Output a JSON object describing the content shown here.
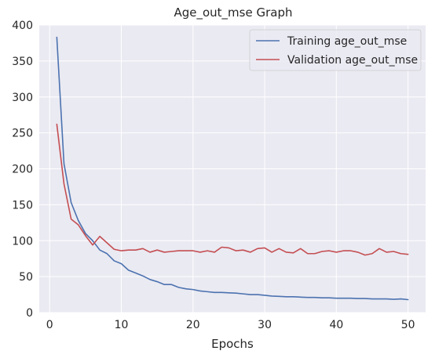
{
  "chart_data": {
    "type": "line",
    "title": "Age_out_mse Graph",
    "xlabel": "Epochs",
    "ylabel": "",
    "xlim": [
      -1.45,
      52.45
    ],
    "ylim": [
      0,
      400
    ],
    "xticks": [
      0,
      10,
      20,
      30,
      40,
      50
    ],
    "yticks": [
      0,
      50,
      100,
      150,
      200,
      250,
      300,
      350,
      400
    ],
    "grid": true,
    "legend_position": "top-right",
    "x": [
      1,
      2,
      3,
      4,
      5,
      6,
      7,
      8,
      9,
      10,
      11,
      12,
      13,
      14,
      15,
      16,
      17,
      18,
      19,
      20,
      21,
      22,
      23,
      24,
      25,
      26,
      27,
      28,
      29,
      30,
      31,
      32,
      33,
      34,
      35,
      36,
      37,
      38,
      39,
      40,
      41,
      42,
      43,
      44,
      45,
      46,
      47,
      48,
      49,
      50
    ],
    "series": [
      {
        "name": "Training age_out_mse",
        "color": "#4c72b0",
        "values": [
          383,
          207,
          153,
          128,
          110,
          100,
          87,
          82,
          72,
          68,
          59,
          55,
          51,
          46,
          43,
          39,
          39,
          35,
          33,
          32,
          30,
          29,
          28,
          28,
          27.5,
          27,
          26,
          25,
          25,
          24,
          23,
          22.5,
          22,
          22,
          21.5,
          21,
          21,
          20.5,
          20.5,
          20,
          20,
          20,
          19.5,
          19.5,
          19,
          19,
          19,
          18.5,
          19,
          18
        ]
      },
      {
        "name": "Validation age_out_mse",
        "color": "#c44e52",
        "values": [
          262,
          179,
          130,
          122,
          107,
          94,
          106,
          97,
          88,
          86,
          87,
          87,
          89,
          84,
          87,
          84,
          85,
          86,
          86,
          86,
          84,
          86,
          84,
          91,
          90,
          86,
          87,
          84,
          89,
          90,
          84,
          89,
          84,
          83,
          89,
          82,
          82,
          85,
          86,
          84,
          86,
          86,
          84,
          80,
          82,
          89,
          84,
          85,
          82,
          81
        ]
      }
    ]
  }
}
